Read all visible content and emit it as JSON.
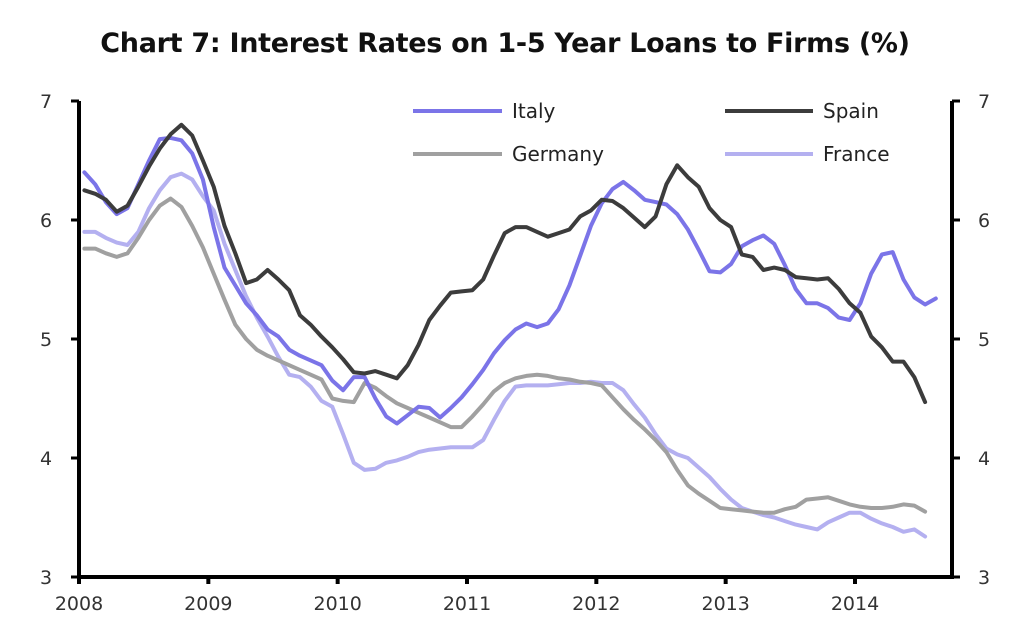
{
  "chart_data": {
    "type": "line",
    "title": "Chart 7: Interest Rates on 1-5 Year Loans to Firms (%)",
    "xlabel": "",
    "ylabel": "",
    "x_start": "2008-01",
    "x_frequency": "monthly",
    "xlim": [
      2008,
      2014.75
    ],
    "ylim": [
      3,
      7
    ],
    "x_ticks": [
      "2008",
      "2009",
      "2010",
      "2011",
      "2012",
      "2013",
      "2014"
    ],
    "y_ticks_left": [
      "7",
      "6",
      "5",
      "4",
      "3"
    ],
    "y_ticks_right": [
      "7",
      "6",
      "5",
      "4",
      "3"
    ],
    "grid": false,
    "legend": "top-right",
    "series": [
      {
        "name": "Italy",
        "color": "#7b74e8",
        "values": [
          6.4,
          6.3,
          6.15,
          6.05,
          6.1,
          6.3,
          6.5,
          6.68,
          6.69,
          6.67,
          6.56,
          6.34,
          5.94,
          5.6,
          5.45,
          5.3,
          5.2,
          5.08,
          5.02,
          4.91,
          4.86,
          4.82,
          4.78,
          4.65,
          4.57,
          4.68,
          4.68,
          4.5,
          4.35,
          4.29,
          4.36,
          4.43,
          4.42,
          4.34,
          4.42,
          4.51,
          4.62,
          4.74,
          4.88,
          4.99,
          5.08,
          5.13,
          5.1,
          5.13,
          5.25,
          5.45,
          5.7,
          5.95,
          6.14,
          6.26,
          6.32,
          6.25,
          6.17,
          6.15,
          6.13,
          6.05,
          5.92,
          5.75,
          5.57,
          5.56,
          5.63,
          5.78,
          5.83,
          5.87,
          5.8,
          5.62,
          5.42,
          5.3,
          5.3,
          5.26,
          5.18,
          5.16,
          5.3,
          5.55,
          5.71,
          5.73,
          5.5,
          5.35,
          5.29,
          5.34
        ]
      },
      {
        "name": "Spain",
        "color": "#3c3c3c",
        "values": [
          6.25,
          6.22,
          6.17,
          6.07,
          6.12,
          6.28,
          6.45,
          6.6,
          6.72,
          6.8,
          6.71,
          6.5,
          6.28,
          5.95,
          5.72,
          5.47,
          5.5,
          5.58,
          5.5,
          5.41,
          5.2,
          5.12,
          5.02,
          4.93,
          4.83,
          4.72,
          4.71,
          4.73,
          4.7,
          4.67,
          4.78,
          4.95,
          5.16,
          5.28,
          5.39,
          5.4,
          5.41,
          5.5,
          5.7,
          5.89,
          5.94,
          5.94,
          5.9,
          5.86,
          5.89,
          5.92,
          6.03,
          6.08,
          6.17,
          6.16,
          6.1,
          6.02,
          5.94,
          6.03,
          6.3,
          6.46,
          6.36,
          6.28,
          6.1,
          6.0,
          5.94,
          5.71,
          5.69,
          5.58,
          5.6,
          5.58,
          5.52,
          5.51,
          5.5,
          5.51,
          5.42,
          5.3,
          5.22,
          5.02,
          4.93,
          4.81,
          4.81,
          4.68,
          4.47
        ]
      },
      {
        "name": "Germany",
        "color": "#a0a0a0",
        "values": [
          5.76,
          5.76,
          5.72,
          5.69,
          5.72,
          5.85,
          6.0,
          6.12,
          6.18,
          6.11,
          5.95,
          5.77,
          5.55,
          5.33,
          5.12,
          5.0,
          4.91,
          4.86,
          4.82,
          4.78,
          4.74,
          4.7,
          4.66,
          4.5,
          4.48,
          4.47,
          4.63,
          4.59,
          4.52,
          4.46,
          4.42,
          4.38,
          4.34,
          4.3,
          4.26,
          4.26,
          4.35,
          4.45,
          4.56,
          4.63,
          4.67,
          4.69,
          4.7,
          4.69,
          4.67,
          4.66,
          4.64,
          4.63,
          4.61,
          4.51,
          4.41,
          4.32,
          4.24,
          4.15,
          4.05,
          3.9,
          3.77,
          3.7,
          3.64,
          3.58,
          3.57,
          3.56,
          3.55,
          3.54,
          3.54,
          3.57,
          3.59,
          3.65,
          3.66,
          3.67,
          3.64,
          3.61,
          3.59,
          3.58,
          3.58,
          3.59,
          3.61,
          3.6,
          3.55
        ]
      },
      {
        "name": "France",
        "color": "#b4b0f0",
        "values": [
          5.9,
          5.9,
          5.85,
          5.81,
          5.79,
          5.9,
          6.1,
          6.25,
          6.36,
          6.39,
          6.34,
          6.2,
          6.08,
          5.8,
          5.58,
          5.36,
          5.18,
          5.02,
          4.85,
          4.7,
          4.68,
          4.6,
          4.48,
          4.43,
          4.2,
          3.96,
          3.9,
          3.91,
          3.96,
          3.98,
          4.01,
          4.05,
          4.07,
          4.08,
          4.09,
          4.09,
          4.09,
          4.15,
          4.32,
          4.48,
          4.6,
          4.61,
          4.61,
          4.61,
          4.62,
          4.63,
          4.63,
          4.64,
          4.63,
          4.63,
          4.57,
          4.45,
          4.34,
          4.2,
          4.08,
          4.03,
          4.0,
          3.92,
          3.84,
          3.74,
          3.65,
          3.58,
          3.55,
          3.52,
          3.5,
          3.47,
          3.44,
          3.42,
          3.4,
          3.46,
          3.5,
          3.54,
          3.54,
          3.49,
          3.45,
          3.42,
          3.38,
          3.4,
          3.34
        ]
      }
    ]
  }
}
